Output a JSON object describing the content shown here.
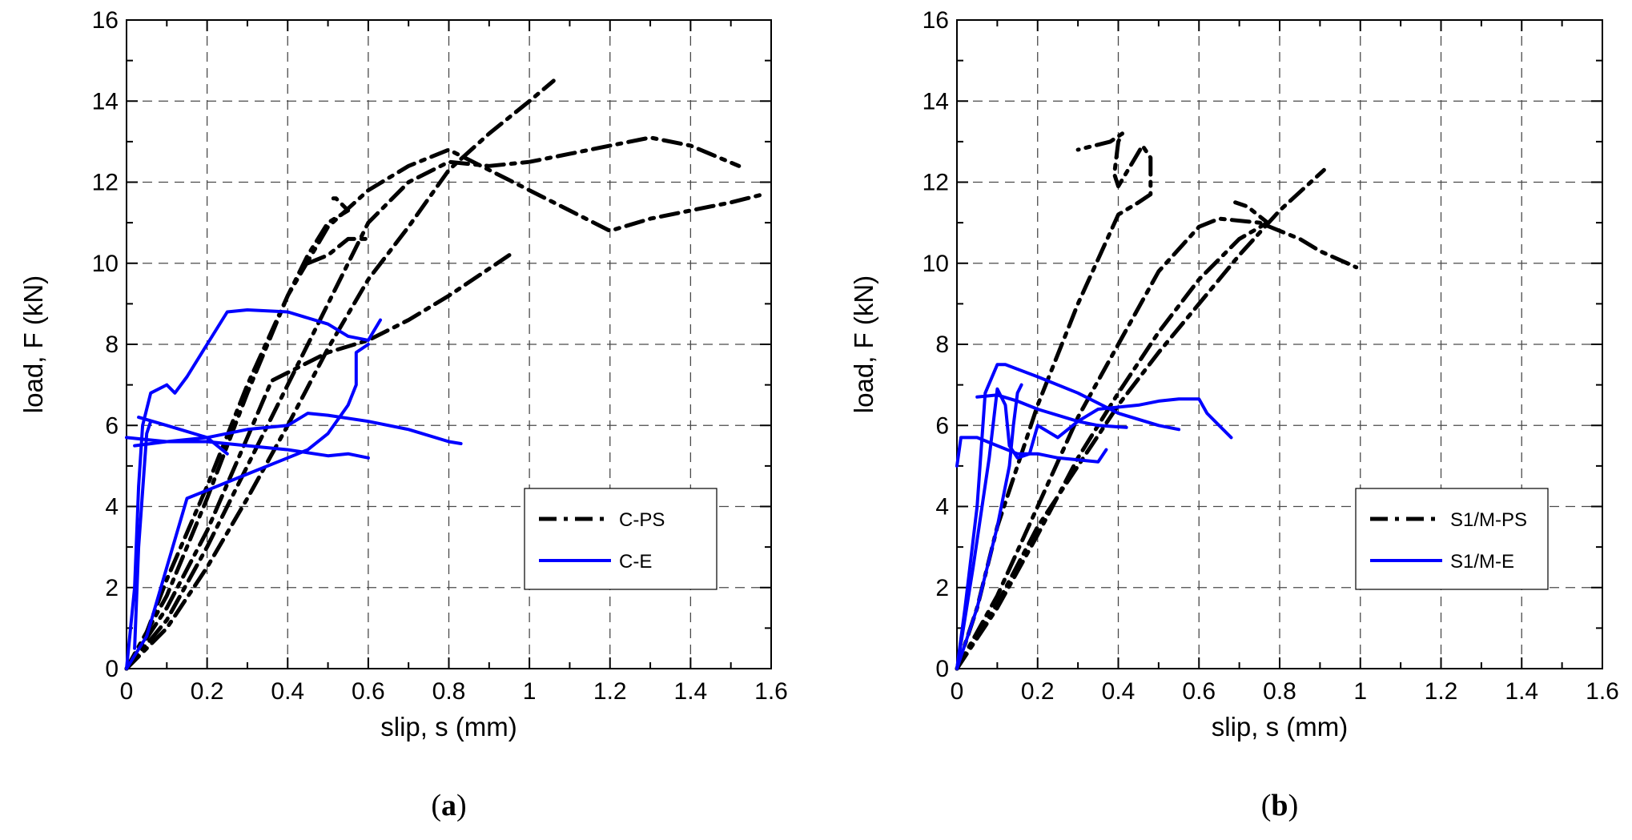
{
  "chart_data": [
    {
      "type": "line",
      "panel_label": "(a)",
      "panel_label_parts": [
        "(",
        "a",
        ")"
      ],
      "xlabel": "slip, s (mm)",
      "ylabel": "load, F (kN)",
      "xlim": [
        0,
        1.6
      ],
      "ylim": [
        0,
        16
      ],
      "x_ticks": [
        "0",
        "0.2",
        "0.4",
        "0.6",
        "0.8",
        "1",
        "1.2",
        "1.4",
        "1.6"
      ],
      "y_ticks": [
        "0",
        "2",
        "4",
        "6",
        "8",
        "10",
        "12",
        "14",
        "16"
      ],
      "grid": true,
      "legend_position": "lower-right",
      "series": [
        {
          "name": "C-PS",
          "style": "dash-dot",
          "color": "#000000",
          "curves": [
            [
              [
                0,
                0
              ],
              [
                0.05,
                0.9
              ],
              [
                0.1,
                2.2
              ],
              [
                0.2,
                4.5
              ],
              [
                0.3,
                7.0
              ],
              [
                0.4,
                9.2
              ],
              [
                0.45,
                10.2
              ],
              [
                0.5,
                11.0
              ],
              [
                0.55,
                11.3
              ],
              [
                0.52,
                11.6
              ],
              [
                0.5,
                11.6
              ]
            ],
            [
              [
                0,
                0
              ],
              [
                0.1,
                1.5
              ],
              [
                0.2,
                3.4
              ],
              [
                0.3,
                5.7
              ],
              [
                0.36,
                7.1
              ],
              [
                0.4,
                7.3
              ],
              [
                0.5,
                7.8
              ],
              [
                0.6,
                8.1
              ],
              [
                0.7,
                8.6
              ],
              [
                0.8,
                9.2
              ],
              [
                0.95,
                10.2
              ]
            ],
            [
              [
                0,
                0
              ],
              [
                0.1,
                1.8
              ],
              [
                0.2,
                4.2
              ],
              [
                0.3,
                6.8
              ],
              [
                0.4,
                9.2
              ],
              [
                0.5,
                10.9
              ],
              [
                0.6,
                11.8
              ],
              [
                0.7,
                12.4
              ],
              [
                0.8,
                12.8
              ],
              [
                0.9,
                12.3
              ],
              [
                1.0,
                11.8
              ],
              [
                1.1,
                11.3
              ],
              [
                1.2,
                10.8
              ],
              [
                1.3,
                11.1
              ],
              [
                1.4,
                11.3
              ],
              [
                1.5,
                11.5
              ],
              [
                1.58,
                11.7
              ]
            ],
            [
              [
                0,
                0
              ],
              [
                0.1,
                1.2
              ],
              [
                0.2,
                3.0
              ],
              [
                0.3,
                5.0
              ],
              [
                0.4,
                7.0
              ],
              [
                0.5,
                9.0
              ],
              [
                0.6,
                11.0
              ],
              [
                0.7,
                12.0
              ],
              [
                0.8,
                12.5
              ],
              [
                0.9,
                12.4
              ],
              [
                1.0,
                12.5
              ],
              [
                1.1,
                12.7
              ],
              [
                1.2,
                12.9
              ],
              [
                1.3,
                13.1
              ],
              [
                1.4,
                12.9
              ],
              [
                1.52,
                12.4
              ]
            ],
            [
              [
                0,
                0
              ],
              [
                0.1,
                1.0
              ],
              [
                0.2,
                2.5
              ],
              [
                0.3,
                4.2
              ],
              [
                0.4,
                6.0
              ],
              [
                0.5,
                7.9
              ],
              [
                0.6,
                9.6
              ],
              [
                0.7,
                10.9
              ],
              [
                0.8,
                12.3
              ],
              [
                0.9,
                13.2
              ],
              [
                1.0,
                14.0
              ],
              [
                1.06,
                14.5
              ]
            ],
            [
              [
                0.45,
                10.0
              ],
              [
                0.5,
                10.2
              ],
              [
                0.55,
                10.6
              ],
              [
                0.6,
                10.6
              ]
            ]
          ]
        },
        {
          "name": "C-E",
          "style": "solid",
          "color": "#0000ff",
          "curves": [
            [
              [
                0,
                0
              ],
              [
                0.02,
                2.0
              ],
              [
                0.03,
                4.5
              ],
              [
                0.04,
                6.0
              ],
              [
                0.06,
                6.8
              ],
              [
                0.1,
                7.0
              ],
              [
                0.12,
                6.8
              ],
              [
                0.15,
                7.2
              ],
              [
                0.2,
                8.0
              ],
              [
                0.25,
                8.8
              ],
              [
                0.3,
                8.85
              ],
              [
                0.4,
                8.8
              ],
              [
                0.5,
                8.5
              ],
              [
                0.55,
                8.2
              ],
              [
                0.6,
                8.1
              ],
              [
                0.63,
                8.6
              ]
            ],
            [
              [
                0,
                5.7
              ],
              [
                0.05,
                5.65
              ],
              [
                0.1,
                5.6
              ],
              [
                0.15,
                5.6
              ],
              [
                0.2,
                5.6
              ],
              [
                0.3,
                5.5
              ],
              [
                0.4,
                5.4
              ],
              [
                0.5,
                5.25
              ],
              [
                0.55,
                5.3
              ],
              [
                0.6,
                5.2
              ]
            ],
            [
              [
                0.03,
                6.2
              ],
              [
                0.1,
                6.0
              ],
              [
                0.2,
                5.7
              ],
              [
                0.25,
                5.3
              ]
            ],
            [
              [
                0,
                0
              ],
              [
                0.05,
                0.8
              ],
              [
                0.1,
                2.5
              ],
              [
                0.15,
                4.2
              ],
              [
                0.2,
                4.4
              ],
              [
                0.25,
                4.6
              ],
              [
                0.3,
                4.8
              ],
              [
                0.4,
                5.2
              ],
              [
                0.45,
                5.4
              ],
              [
                0.5,
                5.8
              ],
              [
                0.55,
                6.5
              ],
              [
                0.57,
                7.0
              ],
              [
                0.57,
                7.8
              ],
              [
                0.6,
                8.0
              ]
            ],
            [
              [
                0.02,
                5.5
              ],
              [
                0.1,
                5.6
              ],
              [
                0.2,
                5.7
              ],
              [
                0.3,
                5.9
              ],
              [
                0.4,
                6.0
              ],
              [
                0.45,
                6.3
              ],
              [
                0.5,
                6.25
              ],
              [
                0.6,
                6.1
              ],
              [
                0.7,
                5.9
              ],
              [
                0.8,
                5.6
              ],
              [
                0.83,
                5.55
              ]
            ],
            [
              [
                0.02,
                0.5
              ],
              [
                0.03,
                3.0
              ],
              [
                0.05,
                5.8
              ],
              [
                0.06,
                6.1
              ]
            ]
          ]
        }
      ]
    },
    {
      "type": "line",
      "panel_label": "(b)",
      "panel_label_parts": [
        "(",
        "b",
        ")"
      ],
      "xlabel": "slip, s (mm)",
      "ylabel": "load, F (kN)",
      "xlim": [
        0,
        1.6
      ],
      "ylim": [
        0,
        16
      ],
      "x_ticks": [
        "0",
        "0.2",
        "0.4",
        "0.6",
        "0.8",
        "1",
        "1.2",
        "1.4",
        "1.6"
      ],
      "y_ticks": [
        "0",
        "2",
        "4",
        "6",
        "8",
        "10",
        "12",
        "14",
        "16"
      ],
      "grid": true,
      "legend_position": "lower-right",
      "series": [
        {
          "name": "S1/M-PS",
          "style": "dash-dot",
          "color": "#000000",
          "curves": [
            [
              [
                0,
                0
              ],
              [
                0.05,
                1.5
              ],
              [
                0.1,
                3.5
              ],
              [
                0.2,
                6.5
              ],
              [
                0.3,
                9.0
              ],
              [
                0.4,
                11.2
              ],
              [
                0.45,
                11.5
              ],
              [
                0.48,
                11.7
              ],
              [
                0.48,
                12.6
              ],
              [
                0.46,
                12.9
              ],
              [
                0.43,
                12.4
              ],
              [
                0.4,
                11.9
              ],
              [
                0.39,
                12.2
              ],
              [
                0.4,
                13.0
              ],
              [
                0.41,
                13.2
              ],
              [
                0.38,
                13.0
              ],
              [
                0.3,
                12.8
              ]
            ],
            [
              [
                0,
                0
              ],
              [
                0.1,
                1.8
              ],
              [
                0.2,
                4.0
              ],
              [
                0.3,
                6.2
              ],
              [
                0.4,
                8.0
              ],
              [
                0.5,
                9.8
              ],
              [
                0.6,
                10.9
              ],
              [
                0.65,
                11.1
              ],
              [
                0.75,
                11.0
              ],
              [
                0.85,
                10.6
              ],
              [
                0.9,
                10.3
              ],
              [
                0.99,
                9.9
              ]
            ],
            [
              [
                0,
                0
              ],
              [
                0.1,
                1.5
              ],
              [
                0.2,
                3.3
              ],
              [
                0.3,
                5.2
              ],
              [
                0.4,
                6.8
              ],
              [
                0.5,
                8.3
              ],
              [
                0.6,
                9.6
              ],
              [
                0.7,
                10.6
              ],
              [
                0.77,
                11.0
              ],
              [
                0.72,
                11.4
              ],
              [
                0.69,
                11.5
              ]
            ],
            [
              [
                0,
                0
              ],
              [
                0.1,
                1.6
              ],
              [
                0.2,
                3.5
              ],
              [
                0.3,
                5.0
              ],
              [
                0.4,
                6.5
              ],
              [
                0.5,
                7.8
              ],
              [
                0.6,
                9.0
              ],
              [
                0.7,
                10.2
              ],
              [
                0.8,
                11.3
              ],
              [
                0.91,
                12.3
              ]
            ]
          ]
        },
        {
          "name": "S1/M-E",
          "style": "solid",
          "color": "#0000ff",
          "curves": [
            [
              [
                0,
                0
              ],
              [
                0.02,
                1.5
              ],
              [
                0.05,
                4.0
              ],
              [
                0.07,
                6.8
              ],
              [
                0.1,
                7.5
              ],
              [
                0.12,
                7.5
              ],
              [
                0.2,
                7.2
              ],
              [
                0.3,
                6.8
              ],
              [
                0.4,
                6.3
              ],
              [
                0.5,
                6.0
              ],
              [
                0.55,
                5.9
              ]
            ],
            [
              [
                0,
                5.0
              ],
              [
                0.01,
                5.7
              ],
              [
                0.05,
                5.7
              ],
              [
                0.1,
                5.5
              ],
              [
                0.15,
                5.3
              ],
              [
                0.2,
                5.3
              ],
              [
                0.25,
                5.2
              ],
              [
                0.3,
                5.15
              ],
              [
                0.35,
                5.1
              ],
              [
                0.37,
                5.4
              ]
            ],
            [
              [
                0.05,
                6.7
              ],
              [
                0.1,
                6.75
              ],
              [
                0.15,
                6.6
              ],
              [
                0.2,
                6.4
              ],
              [
                0.3,
                6.1
              ],
              [
                0.35,
                6.0
              ],
              [
                0.42,
                5.95
              ]
            ],
            [
              [
                0,
                0
              ],
              [
                0.04,
                2.5
              ],
              [
                0.08,
                5.2
              ],
              [
                0.1,
                6.9
              ],
              [
                0.12,
                6.5
              ],
              [
                0.13,
                5.5
              ],
              [
                0.15,
                5.2
              ],
              [
                0.18,
                5.3
              ],
              [
                0.2,
                6.0
              ],
              [
                0.25,
                5.7
              ],
              [
                0.3,
                6.1
              ],
              [
                0.35,
                6.4
              ],
              [
                0.45,
                6.5
              ],
              [
                0.5,
                6.6
              ],
              [
                0.55,
                6.65
              ],
              [
                0.6,
                6.65
              ],
              [
                0.62,
                6.3
              ],
              [
                0.65,
                6.0
              ],
              [
                0.68,
                5.7
              ]
            ],
            [
              [
                0,
                0
              ],
              [
                0.05,
                1.5
              ],
              [
                0.1,
                3.5
              ],
              [
                0.13,
                5.0
              ],
              [
                0.14,
                6.0
              ],
              [
                0.15,
                6.8
              ],
              [
                0.16,
                7.0
              ]
            ]
          ]
        }
      ]
    }
  ]
}
